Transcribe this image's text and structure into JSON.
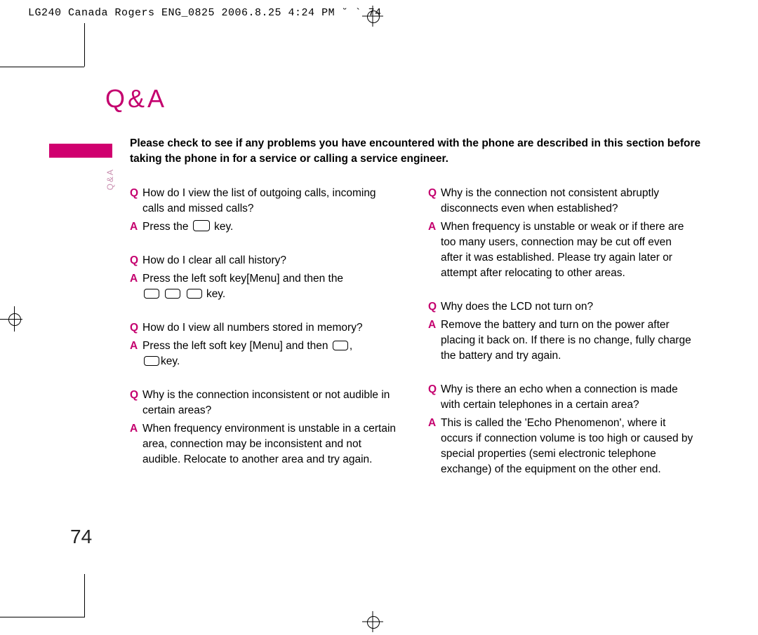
{
  "header": "LG240 Canada Rogers ENG_0825  2006.8.25 4:24 PM  ˘   ` 74",
  "title": "Q&A",
  "sidelabel": "Q&A",
  "intro": "Please check to see if any problems you have encountered with the phone are described in this section before taking the phone in for a service or calling a service engineer.",
  "pagenum": "74",
  "left": [
    {
      "q": "How do I view the list of outgoing calls, incoming calls and missed calls?",
      "a_pre": "Press the ",
      "a_keys": 1,
      "a_post": " key."
    },
    {
      "q": "How do I clear all call history?",
      "a_pre": "Press the left soft key[Menu] and then the ",
      "a_keys": 3,
      "a_post": " key."
    },
    {
      "q": "How do I view all numbers stored in memory?",
      "a_pre": "Press the left soft key [Menu] and then ",
      "a_keys": 1,
      "a_mid": ", ",
      "a_keys2": 1,
      "a_post": "key."
    },
    {
      "q": "Why is the connection inconsistent or not audible in certain areas?",
      "a": "When frequency environment is unstable in a certain area, connection may be inconsistent and not audible. Relocate to another area and try again."
    }
  ],
  "right": [
    {
      "q": "Why is the connection not consistent abruptly disconnects even when established?",
      "a": "When frequency is unstable or weak or if there are too many users, connection may be cut off even after it was established. Please try again later or attempt after relocating to other areas."
    },
    {
      "q": "Why does the LCD not turn on?",
      "a": "Remove the battery and turn on the power after placing it back on. If there is no change, fully charge the battery and try again."
    },
    {
      "q": "Why is there an echo when a connection is made with certain telephones in a certain area?",
      "a": "This is called the 'Echo Phenomenon', where it occurs if connection volume is too high or caused by special properties (semi electronic telephone exchange) of the equipment on the other end."
    }
  ]
}
